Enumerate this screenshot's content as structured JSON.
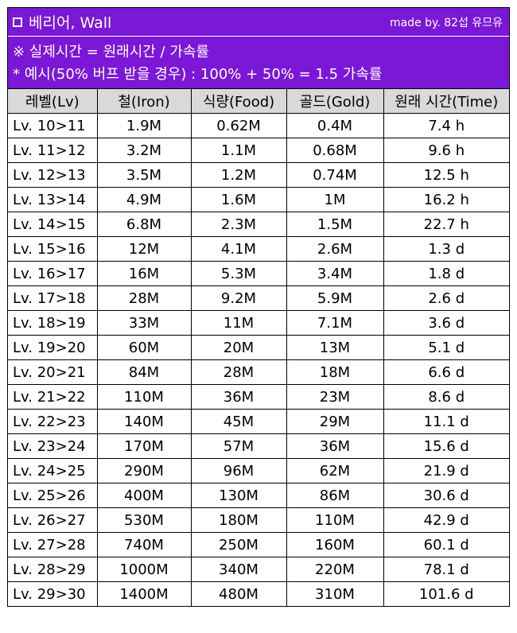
{
  "header": {
    "title": "베리어, Wall",
    "credit": "made by. 82섭 유므유"
  },
  "notes": {
    "line1": "※ 실제시간 = 원래시간 / 가속률",
    "line2": "* 예시(50% 버프 받을 경우) : 100% + 50% = 1.5 가속률"
  },
  "table": {
    "columns": [
      "레벨(Lv)",
      "철(Iron)",
      "식량(Food)",
      "골드(Gold)",
      "원래 시간(Time)"
    ],
    "rows": [
      [
        "Lv. 10>11",
        "1.9M",
        "0.62M",
        "0.4M",
        "7.4 h"
      ],
      [
        "Lv. 11>12",
        "3.2M",
        "1.1M",
        "0.68M",
        "9.6 h"
      ],
      [
        "Lv. 12>13",
        "3.5M",
        "1.2M",
        "0.74M",
        "12.5 h"
      ],
      [
        "Lv. 13>14",
        "4.9M",
        "1.6M",
        "1M",
        "16.2 h"
      ],
      [
        "Lv. 14>15",
        "6.8M",
        "2.3M",
        "1.5M",
        "22.7 h"
      ],
      [
        "Lv. 15>16",
        "12M",
        "4.1M",
        "2.6M",
        "1.3 d"
      ],
      [
        "Lv. 16>17",
        "16M",
        "5.3M",
        "3.4M",
        "1.8 d"
      ],
      [
        "Lv. 17>18",
        "28M",
        "9.2M",
        "5.9M",
        "2.6 d"
      ],
      [
        "Lv. 18>19",
        "33M",
        "11M",
        "7.1M",
        "3.6 d"
      ],
      [
        "Lv. 19>20",
        "60M",
        "20M",
        "13M",
        "5.1 d"
      ],
      [
        "Lv. 20>21",
        "84M",
        "28M",
        "18M",
        "6.6 d"
      ],
      [
        "Lv. 21>22",
        "110M",
        "36M",
        "23M",
        "8.6 d"
      ],
      [
        "Lv. 22>23",
        "140M",
        "45M",
        "29M",
        "11.1 d"
      ],
      [
        "Lv. 23>24",
        "170M",
        "57M",
        "36M",
        "15.6 d"
      ],
      [
        "Lv. 24>25",
        "290M",
        "96M",
        "62M",
        "21.9 d"
      ],
      [
        "Lv. 25>26",
        "400M",
        "130M",
        "86M",
        "30.6 d"
      ],
      [
        "Lv. 26>27",
        "530M",
        "180M",
        "110M",
        "42.9 d"
      ],
      [
        "Lv. 27>28",
        "740M",
        "250M",
        "160M",
        "60.1 d"
      ],
      [
        "Lv. 28>29",
        "1000M",
        "340M",
        "220M",
        "78.1 d"
      ],
      [
        "Lv. 29>30",
        "1400M",
        "480M",
        "310M",
        "101.6 d"
      ]
    ]
  },
  "colors": {
    "header_bg": "#7b17d6",
    "column_header_bg": "#d9d9d9"
  },
  "icons": {
    "title_marker": "square-outline-icon"
  }
}
